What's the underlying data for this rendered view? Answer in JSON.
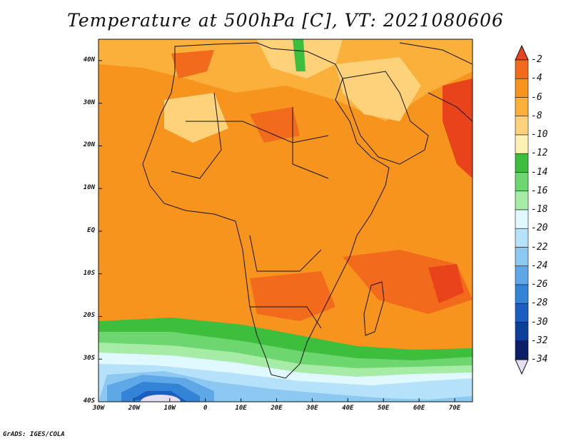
{
  "title": "Temperature at 500hPa [C], VT: 2021080606",
  "footer": "GrADS: IGES/COLA",
  "lat_labels": [
    "40N",
    "30N",
    "20N",
    "10N",
    "EQ",
    "10S",
    "20S",
    "30S",
    "40S"
  ],
  "lon_labels": [
    "30W",
    "20W",
    "10W",
    "0",
    "10E",
    "20E",
    "30E",
    "40E",
    "50E",
    "60E",
    "70E"
  ],
  "colorbar": {
    "labels": [
      "-2",
      "-4",
      "-6",
      "-8",
      "-10",
      "-12",
      "-14",
      "-16",
      "-18",
      "-20",
      "-22",
      "-24",
      "-26",
      "-28",
      "-30",
      "-32",
      "-34"
    ],
    "colors": [
      "#e8431a",
      "#f26a1b",
      "#f7941d",
      "#fbb03b",
      "#fdd27a",
      "#fff0b3",
      "#3dbf3d",
      "#6ed66e",
      "#a6eba6",
      "#e0f8ff",
      "#b5e2fa",
      "#8cc8f2",
      "#5fa8e8",
      "#3384d6",
      "#1a5fbf",
      "#0c3f99",
      "#0a1f66",
      "#e6def2"
    ]
  },
  "domain": {
    "lon_min": -30,
    "lon_max": 75,
    "lat_min": -40,
    "lat_max": 45
  }
}
